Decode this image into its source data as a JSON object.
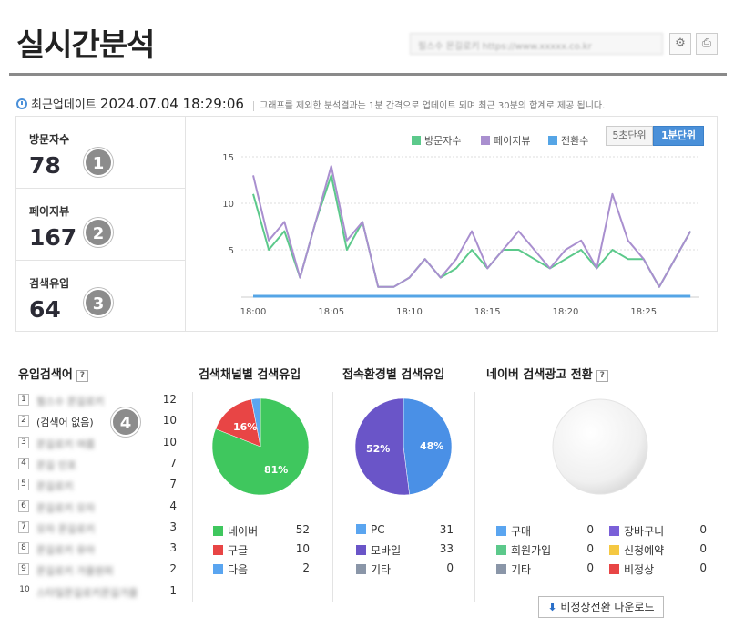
{
  "header": {
    "title": "실시간분석",
    "shop_select": "필스수 몬길로키 https://www.xxxxx.co.kr"
  },
  "update": {
    "label": "최근업데이트",
    "time": "2024.07.04 18:29:06",
    "note": "그래프를 제외한 분석결과는 1분 간격으로 업데이트 되며 최근 30분의 합계로 제공 됩니다."
  },
  "stats": [
    {
      "label": "방문자수",
      "value": "78",
      "badge": "1"
    },
    {
      "label": "페이지뷰",
      "value": "167",
      "badge": "2"
    },
    {
      "label": "검색유입",
      "value": "64",
      "badge": "3"
    }
  ],
  "chart_data": {
    "type": "line",
    "x": [
      "18:00",
      "18:01",
      "18:02",
      "18:03",
      "18:04",
      "18:05",
      "18:06",
      "18:07",
      "18:08",
      "18:09",
      "18:10",
      "18:11",
      "18:12",
      "18:13",
      "18:14",
      "18:15",
      "18:16",
      "18:17",
      "18:18",
      "18:19",
      "18:20",
      "18:21",
      "18:22",
      "18:23",
      "18:24",
      "18:25",
      "18:26",
      "18:27",
      "18:28"
    ],
    "xticks": [
      "18:00",
      "18:05",
      "18:10",
      "18:15",
      "18:20",
      "18:25"
    ],
    "series": [
      {
        "name": "방문자수",
        "color": "#5cc98b",
        "values": [
          11,
          5,
          7,
          2,
          8,
          13,
          5,
          8,
          1,
          1,
          2,
          4,
          2,
          3,
          5,
          3,
          5,
          5,
          4,
          3,
          4,
          5,
          3,
          5,
          4,
          4,
          1,
          4,
          7
        ]
      },
      {
        "name": "페이지뷰",
        "color": "#a98fcf",
        "values": [
          13,
          6,
          8,
          2,
          8,
          14,
          6,
          8,
          1,
          1,
          2,
          4,
          2,
          4,
          7,
          3,
          5,
          7,
          5,
          3,
          5,
          6,
          3,
          11,
          6,
          4,
          1,
          4,
          7
        ]
      },
      {
        "name": "전환수",
        "color": "#55a5e6",
        "values": [
          0,
          0,
          0,
          0,
          0,
          0,
          0,
          0,
          0,
          0,
          0,
          0,
          0,
          0,
          0,
          0,
          0,
          0,
          0,
          0,
          0,
          0,
          0,
          0,
          0,
          0,
          0,
          0,
          0
        ]
      }
    ],
    "yticks": [
      5,
      10,
      15
    ],
    "ylim": [
      0,
      15
    ]
  },
  "unit_buttons": {
    "sec5": "5초단위",
    "min1": "1분단위"
  },
  "keywords": {
    "title": "유입검색어",
    "help": "?",
    "badge": "4",
    "items": [
      {
        "rank": "1",
        "text": "필스수 몬길로키",
        "count": "12"
      },
      {
        "rank": "2",
        "text": "(검색어 없음)",
        "count": "10"
      },
      {
        "rank": "3",
        "text": "몬길로키 여름",
        "count": "10"
      },
      {
        "rank": "4",
        "text": "몬길 인포",
        "count": "7"
      },
      {
        "rank": "5",
        "text": "몬길로키",
        "count": "7"
      },
      {
        "rank": "6",
        "text": "몬길로키 모자",
        "count": "4"
      },
      {
        "rank": "7",
        "text": "모자 몬길로키",
        "count": "3"
      },
      {
        "rank": "8",
        "text": "몬길로키 유아",
        "count": "3"
      },
      {
        "rank": "9",
        "text": "몬길로키 가을원피",
        "count": "2"
      },
      {
        "rank": "10",
        "text": "스타일몬길로키몬길가을",
        "count": "1"
      }
    ]
  },
  "channel": {
    "title": "검색채널별 검색유입",
    "pie": [
      {
        "name": "네이버",
        "pct": 81,
        "label": "81%",
        "color": "#3fc75e"
      },
      {
        "name": "구글",
        "pct": 16,
        "label": "16%",
        "color": "#e84545"
      },
      {
        "name": "다음",
        "pct": 3,
        "label": "",
        "color": "#5aa5f0"
      }
    ],
    "legend": [
      {
        "name": "네이버",
        "value": "52",
        "color": "#3fc75e"
      },
      {
        "name": "구글",
        "value": "10",
        "color": "#e84545"
      },
      {
        "name": "다음",
        "value": "2",
        "color": "#5aa5f0"
      }
    ]
  },
  "device": {
    "title": "접속환경별 검색유입",
    "pie": [
      {
        "name": "PC",
        "pct": 48,
        "label": "48%",
        "color": "#4a90e6"
      },
      {
        "name": "모바일",
        "pct": 52,
        "label": "52%",
        "color": "#6a55c8"
      }
    ],
    "legend": [
      {
        "name": "PC",
        "value": "31",
        "color": "#5aa5f0"
      },
      {
        "name": "모바일",
        "value": "33",
        "color": "#6a55c8"
      },
      {
        "name": "기타",
        "value": "0",
        "color": "#8a96a8"
      }
    ]
  },
  "ads": {
    "title": "네이버 검색광고 전환",
    "help": "?",
    "legend_left": [
      {
        "name": "구매",
        "value": "0",
        "color": "#5aa5f0"
      },
      {
        "name": "회원가입",
        "value": "0",
        "color": "#5cc98b"
      },
      {
        "name": "기타",
        "value": "0",
        "color": "#8a96a8"
      }
    ],
    "legend_right": [
      {
        "name": "장바구니",
        "value": "0",
        "color": "#7a60d8"
      },
      {
        "name": "신청예약",
        "value": "0",
        "color": "#f5c842"
      },
      {
        "name": "비정상",
        "value": "0",
        "color": "#e84545"
      }
    ],
    "download": "비정상전환 다운로드"
  }
}
